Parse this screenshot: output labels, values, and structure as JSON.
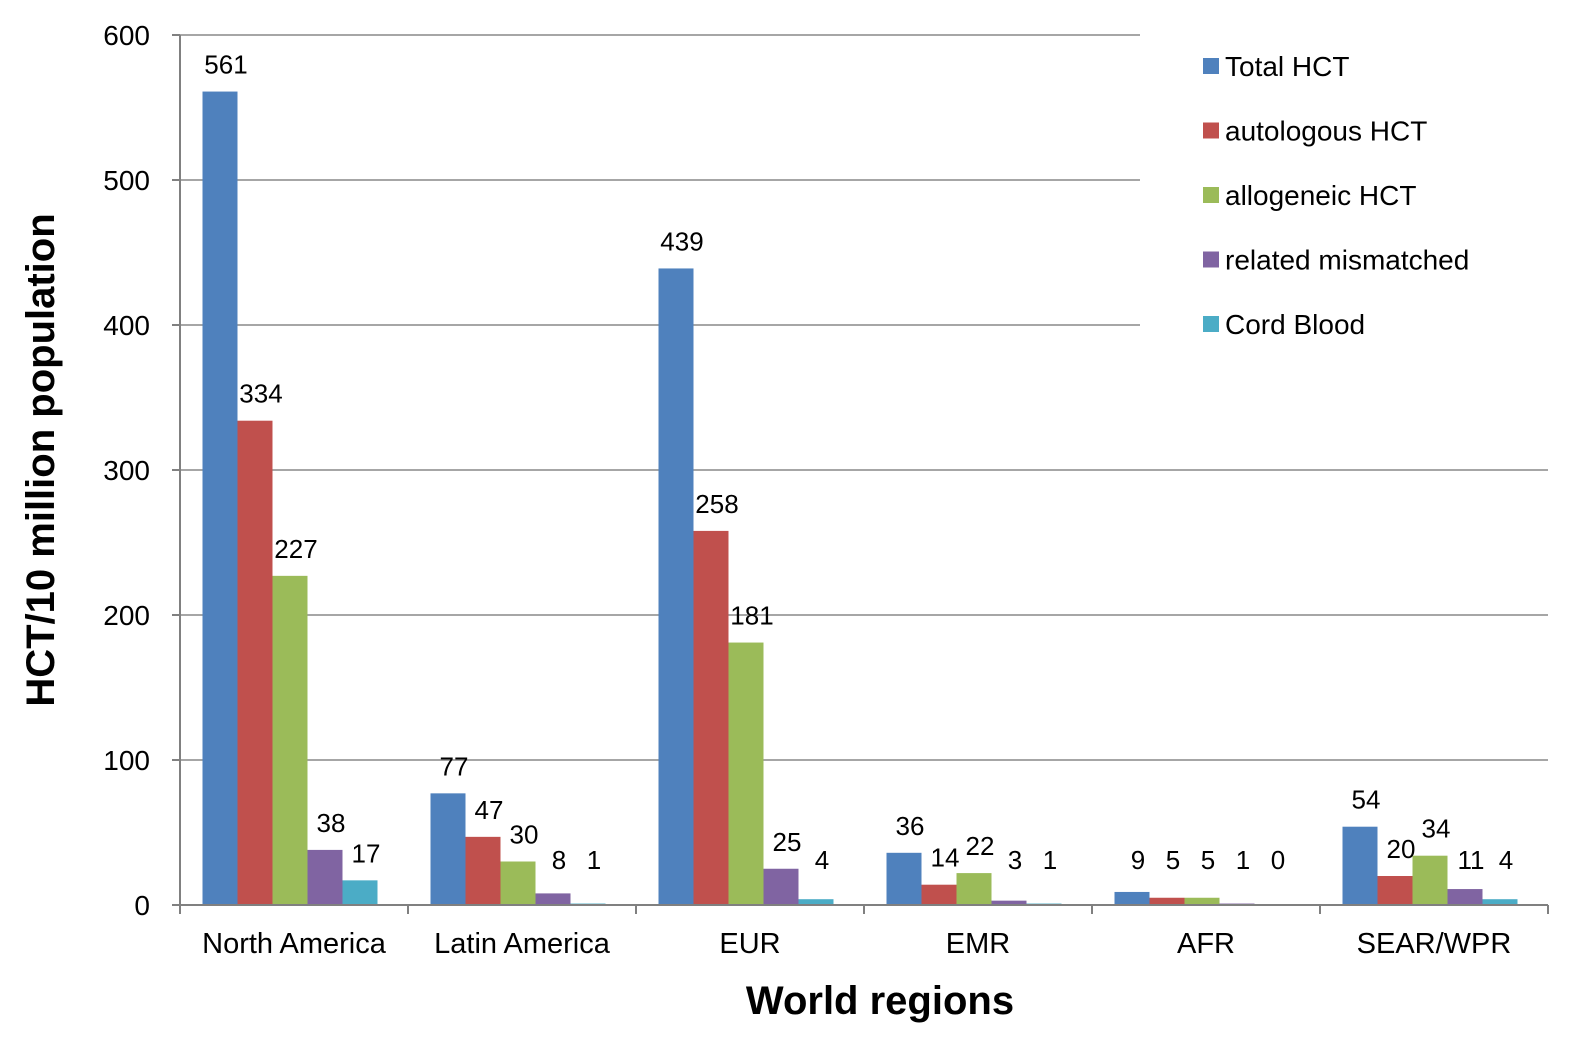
{
  "chart_data": {
    "type": "bar",
    "title": "",
    "xlabel": "World regions",
    "ylabel": "HCT/10 million population",
    "ylim": [
      0,
      600
    ],
    "yticks": [
      0,
      100,
      200,
      300,
      400,
      500,
      600
    ],
    "grid": true,
    "legend_position": "top-right",
    "categories": [
      "North America",
      "Latin America",
      "EUR",
      "EMR",
      "AFR",
      "SEAR/WPR"
    ],
    "series": [
      {
        "name": "Total HCT",
        "color": "#4F81BD",
        "values": [
          561,
          77,
          439,
          36,
          9,
          54
        ]
      },
      {
        "name": "autologous HCT",
        "color": "#C0504D",
        "values": [
          334,
          47,
          258,
          14,
          5,
          20
        ]
      },
      {
        "name": "allogeneic HCT",
        "color": "#9BBB59",
        "values": [
          227,
          30,
          181,
          22,
          5,
          34
        ]
      },
      {
        "name": "related mismatched",
        "color": "#8064A2",
        "values": [
          38,
          8,
          25,
          3,
          1,
          11
        ]
      },
      {
        "name": "Cord Blood",
        "color": "#4BACC6",
        "values": [
          17,
          1,
          4,
          1,
          0,
          4
        ]
      }
    ]
  }
}
